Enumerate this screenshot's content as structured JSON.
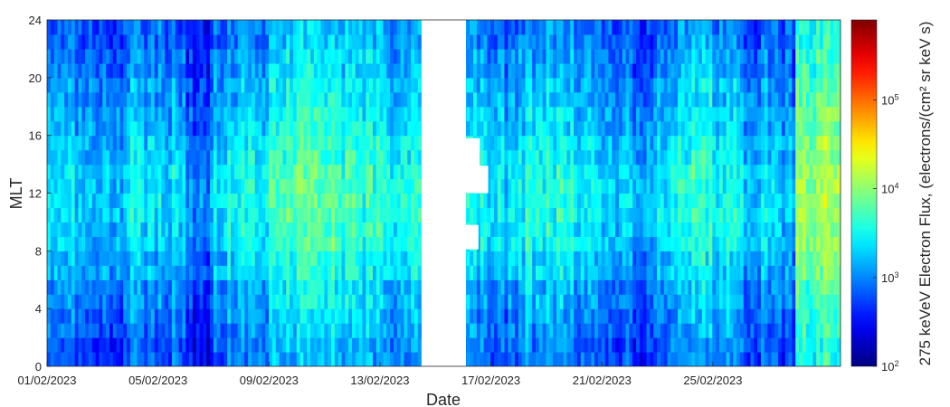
{
  "chart_data": {
    "type": "heatmap",
    "title": "",
    "xlabel": "Date",
    "ylabel": "MLT",
    "x_tick_labels": [
      "01/02/2023",
      "05/02/2023",
      "09/02/2023",
      "13/02/2023",
      "17/02/2023",
      "21/02/2023",
      "25/02/2023"
    ],
    "y_tick_labels": [
      "0",
      "4",
      "8",
      "12",
      "16",
      "20",
      "24"
    ],
    "y_ticks": [
      0,
      4,
      8,
      12,
      16,
      20,
      24
    ],
    "ylim": [
      0,
      24
    ],
    "x_range_days": [
      0,
      28.6
    ],
    "x_tick_days": [
      0,
      4,
      8,
      12,
      16,
      20,
      24
    ],
    "colorbar": {
      "label": "275 keVeV Electron Flux, (electrons/(cm² sr keV s)",
      "scale": "log",
      "colormap": "jet",
      "range_exp": [
        2,
        5.9
      ],
      "tick_exponents": [
        2,
        3,
        4,
        5
      ],
      "tick_base": "10"
    },
    "data_gaps": [
      {
        "day_start": 13.5,
        "day_end": 15.1,
        "mlt_start": 0,
        "mlt_end": 24
      },
      {
        "day_start": 15.1,
        "day_end": 15.6,
        "mlt_start": 13.8,
        "mlt_end": 15.8
      },
      {
        "day_start": 15.1,
        "day_end": 15.9,
        "mlt_start": 12.0,
        "mlt_end": 13.9
      },
      {
        "day_start": 15.1,
        "day_end": 15.55,
        "mlt_start": 8.1,
        "mlt_end": 9.8
      }
    ],
    "daily_mean_log_flux": [
      3.1,
      2.9,
      3.0,
      3.2,
      3.1,
      2.8,
      3.2,
      3.3,
      3.5,
      3.6,
      3.5,
      3.4,
      3.3,
      3.3,
      3.0,
      3.2,
      3.1,
      3.3,
      3.3,
      3.2,
      3.0,
      3.0,
      3.2,
      3.4,
      3.3,
      3.1,
      3.0,
      3.8,
      3.9
    ],
    "mlt_profile_log_offset": [
      -0.3,
      -0.2,
      -0.1,
      0.05,
      0.2,
      0.25,
      0.25,
      0.15,
      0.05,
      -0.05,
      -0.15,
      -0.25
    ]
  }
}
